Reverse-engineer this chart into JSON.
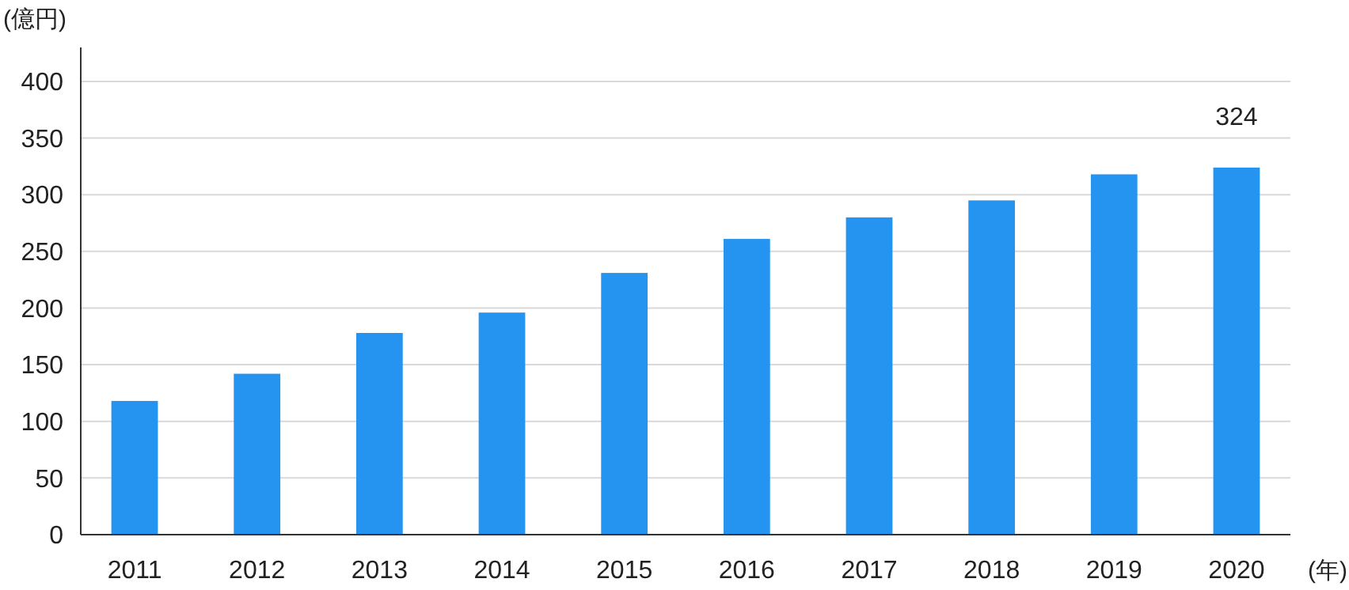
{
  "chart_data": {
    "type": "bar",
    "ylabel": "(億円)",
    "xlabel": "(年)",
    "categories": [
      "2011",
      "2012",
      "2013",
      "2014",
      "2015",
      "2016",
      "2017",
      "2018",
      "2019",
      "2020"
    ],
    "values": [
      118,
      142,
      178,
      196,
      231,
      261,
      280,
      295,
      318,
      324
    ],
    "value_labels": [
      null,
      null,
      null,
      null,
      null,
      null,
      null,
      null,
      null,
      "324"
    ],
    "color": "#2494f0",
    "ylim": [
      0,
      430
    ],
    "yticks": [
      0,
      50,
      100,
      150,
      200,
      250,
      300,
      350,
      400
    ],
    "grid": "y"
  }
}
